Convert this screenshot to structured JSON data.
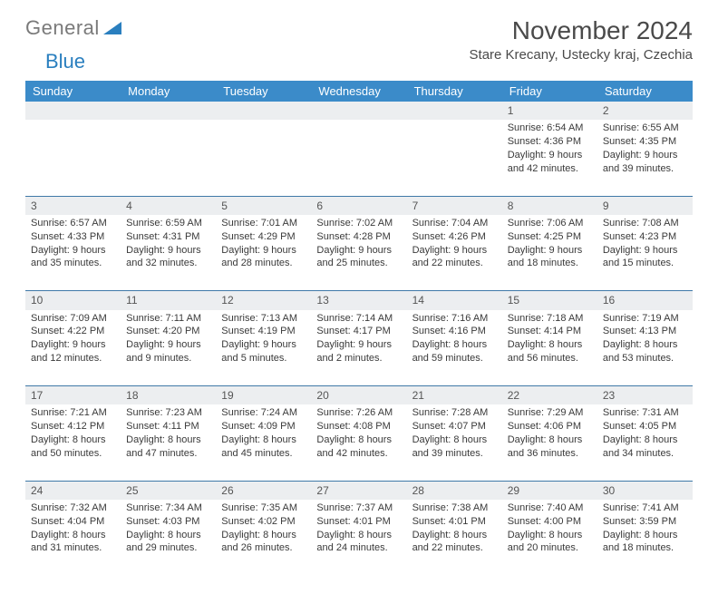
{
  "logo": {
    "word1": "General",
    "word2": "Blue"
  },
  "title": "November 2024",
  "location": "Stare Krecany, Ustecky kraj, Czechia",
  "colors": {
    "header_bg": "#3b8bc9",
    "daynum_bg": "#eceef0",
    "row_border": "#4079a8",
    "text": "#3a3a3a",
    "title_text": "#4a4a4a",
    "logo_gray": "#7a7a7a",
    "logo_blue": "#2a7fbf"
  },
  "weekdays": [
    "Sunday",
    "Monday",
    "Tuesday",
    "Wednesday",
    "Thursday",
    "Friday",
    "Saturday"
  ],
  "weeks": [
    [
      null,
      null,
      null,
      null,
      null,
      {
        "n": "1",
        "sr": "6:54 AM",
        "ss": "4:36 PM",
        "dl": "9 hours and 42 minutes."
      },
      {
        "n": "2",
        "sr": "6:55 AM",
        "ss": "4:35 PM",
        "dl": "9 hours and 39 minutes."
      }
    ],
    [
      {
        "n": "3",
        "sr": "6:57 AM",
        "ss": "4:33 PM",
        "dl": "9 hours and 35 minutes."
      },
      {
        "n": "4",
        "sr": "6:59 AM",
        "ss": "4:31 PM",
        "dl": "9 hours and 32 minutes."
      },
      {
        "n": "5",
        "sr": "7:01 AM",
        "ss": "4:29 PM",
        "dl": "9 hours and 28 minutes."
      },
      {
        "n": "6",
        "sr": "7:02 AM",
        "ss": "4:28 PM",
        "dl": "9 hours and 25 minutes."
      },
      {
        "n": "7",
        "sr": "7:04 AM",
        "ss": "4:26 PM",
        "dl": "9 hours and 22 minutes."
      },
      {
        "n": "8",
        "sr": "7:06 AM",
        "ss": "4:25 PM",
        "dl": "9 hours and 18 minutes."
      },
      {
        "n": "9",
        "sr": "7:08 AM",
        "ss": "4:23 PM",
        "dl": "9 hours and 15 minutes."
      }
    ],
    [
      {
        "n": "10",
        "sr": "7:09 AM",
        "ss": "4:22 PM",
        "dl": "9 hours and 12 minutes."
      },
      {
        "n": "11",
        "sr": "7:11 AM",
        "ss": "4:20 PM",
        "dl": "9 hours and 9 minutes."
      },
      {
        "n": "12",
        "sr": "7:13 AM",
        "ss": "4:19 PM",
        "dl": "9 hours and 5 minutes."
      },
      {
        "n": "13",
        "sr": "7:14 AM",
        "ss": "4:17 PM",
        "dl": "9 hours and 2 minutes."
      },
      {
        "n": "14",
        "sr": "7:16 AM",
        "ss": "4:16 PM",
        "dl": "8 hours and 59 minutes."
      },
      {
        "n": "15",
        "sr": "7:18 AM",
        "ss": "4:14 PM",
        "dl": "8 hours and 56 minutes."
      },
      {
        "n": "16",
        "sr": "7:19 AM",
        "ss": "4:13 PM",
        "dl": "8 hours and 53 minutes."
      }
    ],
    [
      {
        "n": "17",
        "sr": "7:21 AM",
        "ss": "4:12 PM",
        "dl": "8 hours and 50 minutes."
      },
      {
        "n": "18",
        "sr": "7:23 AM",
        "ss": "4:11 PM",
        "dl": "8 hours and 47 minutes."
      },
      {
        "n": "19",
        "sr": "7:24 AM",
        "ss": "4:09 PM",
        "dl": "8 hours and 45 minutes."
      },
      {
        "n": "20",
        "sr": "7:26 AM",
        "ss": "4:08 PM",
        "dl": "8 hours and 42 minutes."
      },
      {
        "n": "21",
        "sr": "7:28 AM",
        "ss": "4:07 PM",
        "dl": "8 hours and 39 minutes."
      },
      {
        "n": "22",
        "sr": "7:29 AM",
        "ss": "4:06 PM",
        "dl": "8 hours and 36 minutes."
      },
      {
        "n": "23",
        "sr": "7:31 AM",
        "ss": "4:05 PM",
        "dl": "8 hours and 34 minutes."
      }
    ],
    [
      {
        "n": "24",
        "sr": "7:32 AM",
        "ss": "4:04 PM",
        "dl": "8 hours and 31 minutes."
      },
      {
        "n": "25",
        "sr": "7:34 AM",
        "ss": "4:03 PM",
        "dl": "8 hours and 29 minutes."
      },
      {
        "n": "26",
        "sr": "7:35 AM",
        "ss": "4:02 PM",
        "dl": "8 hours and 26 minutes."
      },
      {
        "n": "27",
        "sr": "7:37 AM",
        "ss": "4:01 PM",
        "dl": "8 hours and 24 minutes."
      },
      {
        "n": "28",
        "sr": "7:38 AM",
        "ss": "4:01 PM",
        "dl": "8 hours and 22 minutes."
      },
      {
        "n": "29",
        "sr": "7:40 AM",
        "ss": "4:00 PM",
        "dl": "8 hours and 20 minutes."
      },
      {
        "n": "30",
        "sr": "7:41 AM",
        "ss": "3:59 PM",
        "dl": "8 hours and 18 minutes."
      }
    ]
  ],
  "labels": {
    "sunrise": "Sunrise:",
    "sunset": "Sunset:",
    "daylight": "Daylight:"
  }
}
